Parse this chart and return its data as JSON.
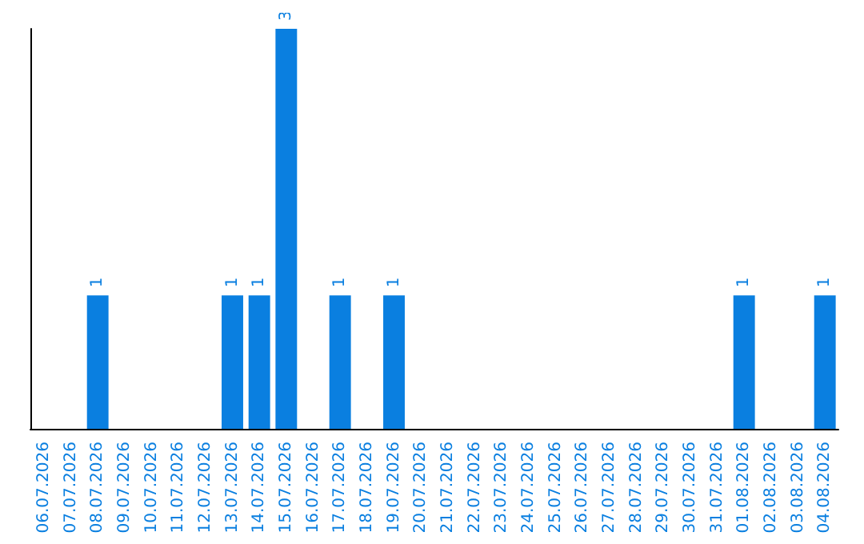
{
  "chart_data": {
    "type": "bar",
    "categories": [
      "06.07.2026",
      "07.07.2026",
      "08.07.2026",
      "09.07.2026",
      "10.07.2026",
      "11.07.2026",
      "12.07.2026",
      "13.07.2026",
      "14.07.2026",
      "15.07.2026",
      "16.07.2026",
      "17.07.2026",
      "18.07.2026",
      "19.07.2026",
      "20.07.2026",
      "21.07.2026",
      "22.07.2026",
      "23.07.2026",
      "24.07.2026",
      "25.07.2026",
      "26.07.2026",
      "27.07.2026",
      "28.07.2026",
      "29.07.2026",
      "30.07.2026",
      "31.07.2026",
      "01.08.2026",
      "02.08.2026",
      "03.08.2026",
      "04.08.2026"
    ],
    "values": [
      0,
      0,
      1,
      0,
      0,
      0,
      0,
      1,
      1,
      3,
      0,
      1,
      0,
      1,
      0,
      0,
      0,
      0,
      0,
      0,
      0,
      0,
      0,
      0,
      0,
      0,
      1,
      0,
      0,
      1
    ],
    "value_labels": [
      null,
      null,
      "1",
      null,
      null,
      null,
      null,
      "1",
      "1",
      "3",
      null,
      "1",
      null,
      "1",
      null,
      null,
      null,
      null,
      null,
      null,
      null,
      null,
      null,
      null,
      null,
      null,
      "1",
      null,
      null,
      "1"
    ],
    "color": "#0a7fe0",
    "tick_labels": "x"
  }
}
